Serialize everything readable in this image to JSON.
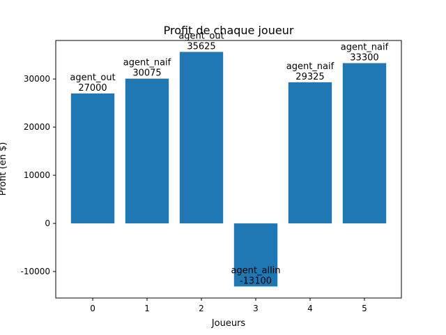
{
  "chart_data": {
    "type": "bar",
    "title": "Profit de chaque joueur",
    "xlabel": "Joueurs",
    "ylabel": "Profit (en $)",
    "categories": [
      "0",
      "1",
      "2",
      "3",
      "4",
      "5"
    ],
    "values": [
      27000,
      30075,
      35625,
      -13100,
      29325,
      33300
    ],
    "bar_labels": [
      [
        "agent_out",
        "27000"
      ],
      [
        "agent_naif",
        "30075"
      ],
      [
        "agent_out",
        "35625"
      ],
      [
        "agent_allin",
        "-13100"
      ],
      [
        "agent_naif",
        "29325"
      ],
      [
        "agent_naif",
        "33300"
      ]
    ],
    "yticks": [
      -10000,
      0,
      10000,
      20000,
      30000
    ],
    "ylim": [
      -15500,
      38000
    ],
    "xlim": [
      -0.68,
      5.68
    ],
    "bar_color": "#1f77b4",
    "grid": false
  }
}
